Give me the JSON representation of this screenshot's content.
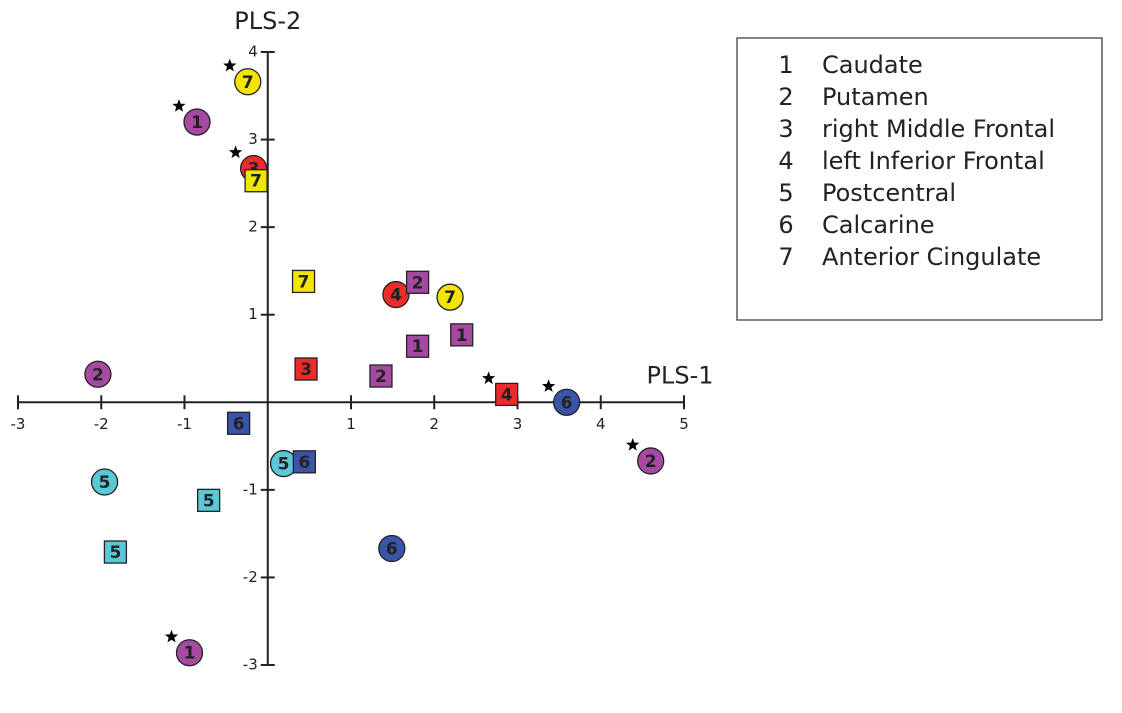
{
  "chart_data": {
    "type": "scatter",
    "x_label": "PLS-1",
    "y_label": "PLS-2",
    "xlim": [
      -3,
      5
    ],
    "ylim": [
      -3,
      4
    ],
    "xticks": [
      -3,
      -2,
      -1,
      1,
      2,
      3,
      4,
      5
    ],
    "yticks": [
      -3,
      -2,
      -1,
      1,
      2,
      3,
      4
    ],
    "points": {
      "x": [
        -0.24,
        -0.85,
        -0.17,
        1.54,
        2.19,
        -2.04,
        3.59,
        4.6,
        -1.96,
        0.19,
        1.49,
        -0.94,
        -0.14,
        0.43,
        1.8,
        1.8,
        2.33,
        0.46,
        1.36,
        2.87,
        -0.35,
        0.44,
        -0.71,
        -1.83
      ],
      "y": [
        3.66,
        3.2,
        2.67,
        1.23,
        1.2,
        0.32,
        0.0,
        -0.67,
        -0.91,
        -0.7,
        -1.67,
        -2.86,
        2.53,
        1.38,
        1.37,
        0.64,
        0.77,
        0.38,
        0.3,
        0.09,
        -0.24,
        -0.68,
        -1.12,
        -1.71
      ],
      "labels": [
        "7",
        "1",
        "3",
        "4",
        "7",
        "2",
        "6",
        "2",
        "5",
        "5",
        "6",
        "1",
        "7",
        "7",
        "2",
        "1",
        "1",
        "3",
        "2",
        "4",
        "6",
        "6",
        "5",
        "5"
      ],
      "shapes": [
        "circle",
        "circle",
        "circle",
        "circle",
        "circle",
        "circle",
        "circle",
        "circle",
        "circle",
        "circle",
        "circle",
        "circle",
        "square",
        "square",
        "square",
        "square",
        "square",
        "square",
        "square",
        "square",
        "square",
        "square",
        "square",
        "square"
      ],
      "colors": [
        "#f2e600",
        "#a54aa0",
        "#ee2a2a",
        "#ee2a2a",
        "#f2e600",
        "#a54aa0",
        "#3a55a8",
        "#a54aa0",
        "#5bc8d8",
        "#5bc8d8",
        "#3a55a8",
        "#a54aa0",
        "#f2e600",
        "#f2e600",
        "#a54aa0",
        "#a54aa0",
        "#a54aa0",
        "#ee2a2a",
        "#a54aa0",
        "#ee2a2a",
        "#3a55a8",
        "#3a55a8",
        "#5bc8d8",
        "#5bc8d8"
      ],
      "stars": [
        true,
        true,
        true,
        false,
        false,
        false,
        true,
        true,
        false,
        false,
        false,
        true,
        false,
        false,
        false,
        false,
        false,
        false,
        false,
        true,
        false,
        false,
        false,
        false
      ]
    },
    "legend": [
      {
        "number": "1",
        "name": "Caudate"
      },
      {
        "number": "2",
        "name": "Putamen"
      },
      {
        "number": "3",
        "name": "right Middle Frontal"
      },
      {
        "number": "4",
        "name": "left Inferior Frontal"
      },
      {
        "number": "5",
        "name": "Postcentral"
      },
      {
        "number": "6",
        "name": "Calcarine"
      },
      {
        "number": "7",
        "name": "Anterior Cingulate"
      }
    ]
  }
}
